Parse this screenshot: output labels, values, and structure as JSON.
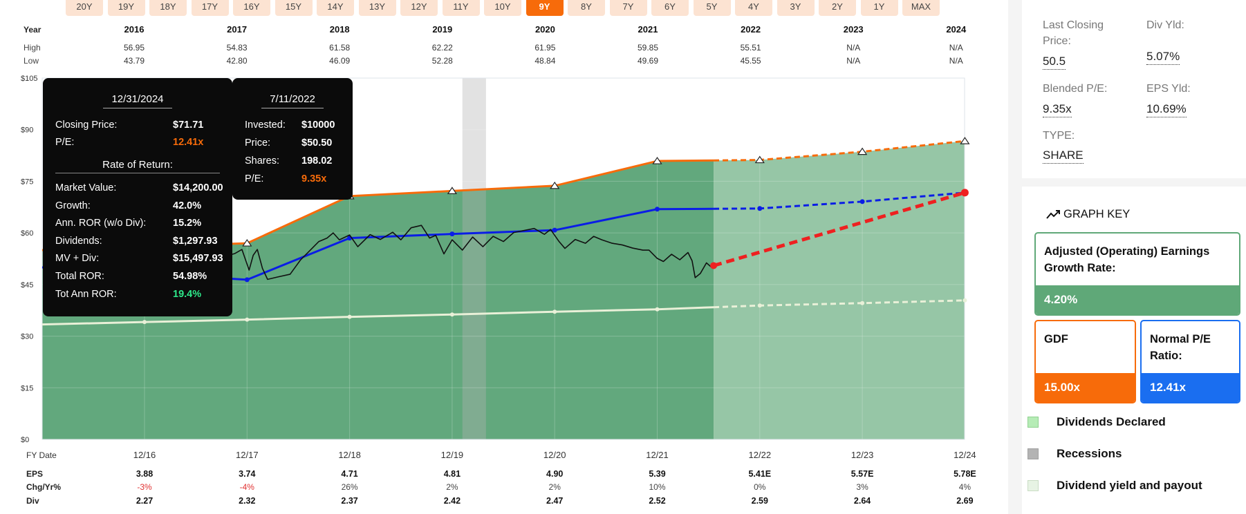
{
  "range_tabs": [
    "20Y",
    "19Y",
    "18Y",
    "17Y",
    "16Y",
    "15Y",
    "14Y",
    "13Y",
    "12Y",
    "11Y",
    "10Y",
    "9Y",
    "8Y",
    "7Y",
    "6Y",
    "5Y",
    "4Y",
    "3Y",
    "2Y",
    "1Y",
    "MAX"
  ],
  "active_tab": "9Y",
  "chart_data": {
    "type": "area",
    "xaxis_title": "FY Date",
    "x": [
      "12/16",
      "12/17",
      "12/18",
      "12/19",
      "12/20",
      "12/21",
      "12/22",
      "12/23",
      "12/24"
    ],
    "ylim": [
      0,
      105
    ],
    "y_ticks": [
      "$0",
      "$15",
      "$30",
      "$45",
      "$60",
      "$75",
      "$90",
      "$105"
    ],
    "y_tick_values": [
      0,
      15,
      30,
      45,
      60,
      75,
      90,
      105
    ],
    "series": [
      {
        "name": "GDF",
        "color": "#f76b0a",
        "values": [
          56.0,
          57.0,
          70.7,
          72.2,
          73.7,
          80.9,
          81.2,
          83.6,
          86.7
        ],
        "estimate_from_index": 6
      },
      {
        "name": "Normal P/E Ratio",
        "color": "#0a1de6",
        "values": [
          48.2,
          46.4,
          58.5,
          59.7,
          60.8,
          66.9,
          67.1,
          69.1,
          71.7
        ],
        "estimate_from_index": 6
      },
      {
        "name": "Dividends Declared",
        "color": "#e9f0d8",
        "values": [
          34.1,
          34.8,
          35.6,
          36.3,
          37.1,
          37.8,
          38.9,
          39.6,
          40.4
        ],
        "estimate_from_index": 6
      },
      {
        "name": "Return projection",
        "color": "#ee2020",
        "start": {
          "x": 5.55,
          "y": 50.5
        },
        "end": {
          "x": 8.0,
          "y": 71.71
        }
      }
    ],
    "price": [
      [
        -0.05,
        49.0
      ],
      [
        0.05,
        50.0
      ],
      [
        0.25,
        51.5
      ],
      [
        0.45,
        52.5
      ],
      [
        0.65,
        52.3
      ],
      [
        0.8,
        53.3
      ],
      [
        0.88,
        54.0
      ],
      [
        0.95,
        55.2
      ],
      [
        1.02,
        49.2
      ],
      [
        1.06,
        53.5
      ],
      [
        1.1,
        55.2
      ],
      [
        1.15,
        49.7
      ],
      [
        1.2,
        46.5
      ],
      [
        1.3,
        47.2
      ],
      [
        1.42,
        48.0
      ],
      [
        1.52,
        52.1
      ],
      [
        1.6,
        54.5
      ],
      [
        1.7,
        57.5
      ],
      [
        1.78,
        58.5
      ],
      [
        1.84,
        60.0
      ],
      [
        1.9,
        58.0
      ],
      [
        2.0,
        59.4
      ],
      [
        2.08,
        56.0
      ],
      [
        2.2,
        59.5
      ],
      [
        2.3,
        58.1
      ],
      [
        2.42,
        60.2
      ],
      [
        2.5,
        58.0
      ],
      [
        2.6,
        61.5
      ],
      [
        2.7,
        62.2
      ],
      [
        2.78,
        58.5
      ],
      [
        2.84,
        59.3
      ],
      [
        2.92,
        53.9
      ],
      [
        3.0,
        58.0
      ],
      [
        3.1,
        55.0
      ],
      [
        3.2,
        58.8
      ],
      [
        3.3,
        56.0
      ],
      [
        3.4,
        59.0
      ],
      [
        3.5,
        57.5
      ],
      [
        3.6,
        60.1
      ],
      [
        3.7,
        60.7
      ],
      [
        3.8,
        61.3
      ],
      [
        3.9,
        59.6
      ],
      [
        3.96,
        61.0
      ],
      [
        4.04,
        57.6
      ],
      [
        4.1,
        55.5
      ],
      [
        4.2,
        58.1
      ],
      [
        4.3,
        57.0
      ],
      [
        4.38,
        59.0
      ],
      [
        4.46,
        58.0
      ],
      [
        4.56,
        57.0
      ],
      [
        4.66,
        56.5
      ],
      [
        4.76,
        55.6
      ],
      [
        4.86,
        55.0
      ],
      [
        4.92,
        55.0
      ],
      [
        5.0,
        52.6
      ],
      [
        5.06,
        51.7
      ],
      [
        5.14,
        53.8
      ],
      [
        5.22,
        52.2
      ],
      [
        5.3,
        54.3
      ],
      [
        5.34,
        51.9
      ],
      [
        5.37,
        47.0
      ],
      [
        5.42,
        48.2
      ],
      [
        5.48,
        51.3
      ],
      [
        5.53,
        50.0
      ],
      [
        5.55,
        50.5
      ]
    ],
    "recession_band": [
      3.1,
      3.33
    ],
    "actual_end_x": 5.55,
    "annual": {
      "years": [
        "2016",
        "2017",
        "2018",
        "2019",
        "2020",
        "2021",
        "2022",
        "2023",
        "2024"
      ],
      "high": [
        "56.95",
        "54.83",
        "61.58",
        "62.22",
        "61.95",
        "59.85",
        "55.51",
        "N/A",
        "N/A"
      ],
      "low": [
        "43.79",
        "42.80",
        "46.09",
        "52.28",
        "48.84",
        "49.69",
        "45.55",
        "N/A",
        "N/A"
      ],
      "eps": [
        "3.88",
        "3.74",
        "4.71",
        "4.81",
        "4.90",
        "5.39",
        "5.41E",
        "5.57E",
        "5.78E"
      ],
      "chg_yr": [
        "-3%",
        "-4%",
        "26%",
        "2%",
        "2%",
        "10%",
        "0%",
        "3%",
        "4%"
      ],
      "div": [
        "2.27",
        "2.32",
        "2.37",
        "2.42",
        "2.47",
        "2.52",
        "2.59",
        "2.64",
        "2.69"
      ]
    },
    "row_labels": {
      "year": "Year",
      "high": "High",
      "low": "Low",
      "eps": "EPS",
      "chg": "Chg/Yr%",
      "div": "Div"
    }
  },
  "tooltip_return": {
    "date": "12/31/2024",
    "rows1": [
      {
        "k": "Closing Price:",
        "v": "$71.71",
        "color": "#ffffff"
      },
      {
        "k": "P/E:",
        "v": "12.41x",
        "color": "#f76b0a"
      }
    ],
    "section": "Rate of Return:",
    "rows2": [
      {
        "k": "Market Value:",
        "v": "$14,200.00",
        "color": "#ffffff"
      },
      {
        "k": "Growth:",
        "v": "42.0%",
        "color": "#ffffff"
      },
      {
        "k": "Ann. ROR (w/o Div):",
        "v": "15.2%",
        "color": "#ffffff"
      },
      {
        "k": "Dividends:",
        "v": "$1,297.93",
        "color": "#ffffff"
      },
      {
        "k": "MV + Div:",
        "v": "$15,497.93",
        "color": "#ffffff"
      },
      {
        "k": "Total ROR:",
        "v": "54.98%",
        "color": "#ffffff"
      },
      {
        "k": "Tot Ann ROR:",
        "v": "19.4%",
        "color": "#2ee88a"
      }
    ]
  },
  "tooltip_invest": {
    "date": "7/11/2022",
    "rows": [
      {
        "k": "Invested:",
        "v": "$10000",
        "color": "#ffffff"
      },
      {
        "k": "Price:",
        "v": "$50.50",
        "color": "#ffffff"
      },
      {
        "k": "Shares:",
        "v": "198.02",
        "color": "#ffffff"
      },
      {
        "k": "P/E:",
        "v": "9.35x",
        "color": "#f76b0a"
      }
    ]
  },
  "stats": {
    "last_closing_label": "Last Closing Price:",
    "last_closing_value": "50.5",
    "div_yld_label": "Div Yld:",
    "div_yld_value": "5.07%",
    "blended_pe_label": "Blended P/E:",
    "blended_pe_value": "9.35x",
    "eps_yld_label": "EPS Yld:",
    "eps_yld_value": "10.69%",
    "type_label": "TYPE:",
    "type_value": "SHARE"
  },
  "graph_key": {
    "title": "GRAPH KEY",
    "growth_label": "Adjusted (Operating) Earnings Growth Rate:",
    "growth_value": "4.20%",
    "gdf_label": "GDF",
    "gdf_value": "15.00x",
    "normal_pe_label": "Normal P/E Ratio:",
    "normal_pe_value": "12.41x",
    "legend": [
      {
        "label": "Dividends Declared",
        "color": "#b6ecb6",
        "border": "#8fd08f"
      },
      {
        "label": "Recessions",
        "color": "#b3b3b3",
        "border": "#a0a0a0"
      },
      {
        "label": "Dividend yield and payout",
        "color": "#e7f3e4",
        "border": "#c9dcc4"
      }
    ],
    "colors": {
      "green": "#5fa878",
      "orange": "#f76b0a",
      "blue": "#1a6ef0"
    }
  }
}
